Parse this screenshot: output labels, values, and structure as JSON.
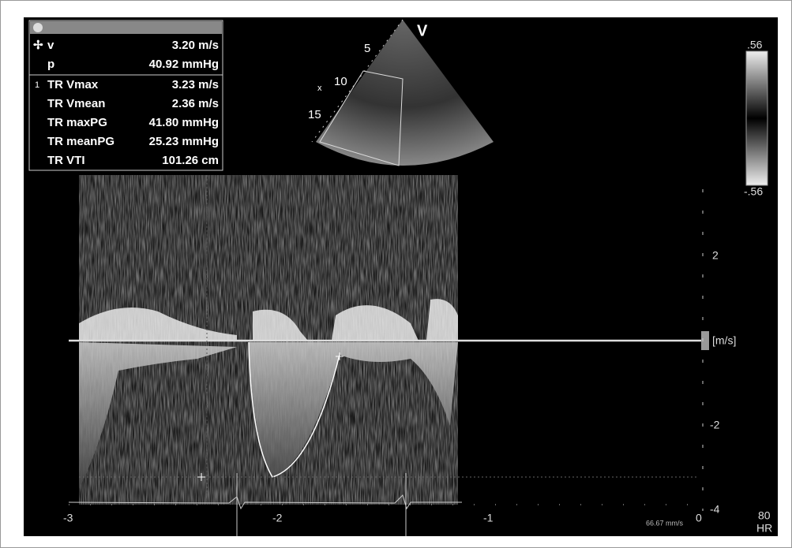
{
  "panel": {
    "cursor_rows": [
      {
        "label": "v",
        "value": "3.20 m/s"
      },
      {
        "label": "p",
        "value": "40.92 mmHg"
      }
    ],
    "measurement_index": "1",
    "measurement_rows": [
      {
        "label": "TR Vmax",
        "value": "3.23 m/s"
      },
      {
        "label": "TR Vmean",
        "value": "2.36 m/s"
      },
      {
        "label": "TR maxPG",
        "value": "41.80 mmHg"
      },
      {
        "label": "TR meanPG",
        "value": "25.23 mmHg"
      },
      {
        "label": "TR VTI",
        "value": "101.26 cm"
      }
    ]
  },
  "echo": {
    "view_label": "V",
    "depth_marks": [
      "5",
      "10",
      "15"
    ],
    "marker": "x"
  },
  "color_bar": {
    "max": ".56",
    "min": "-.56"
  },
  "velocity_axis": {
    "ticks": [
      "2",
      "-2",
      "-4"
    ],
    "unit": "[m/s]"
  },
  "time_axis": {
    "ticks": [
      "-3",
      "-2",
      "-1",
      "0"
    ]
  },
  "sweep_speed": "66.67 mm/s",
  "heart_rate": {
    "value": "80",
    "label": "HR"
  }
}
